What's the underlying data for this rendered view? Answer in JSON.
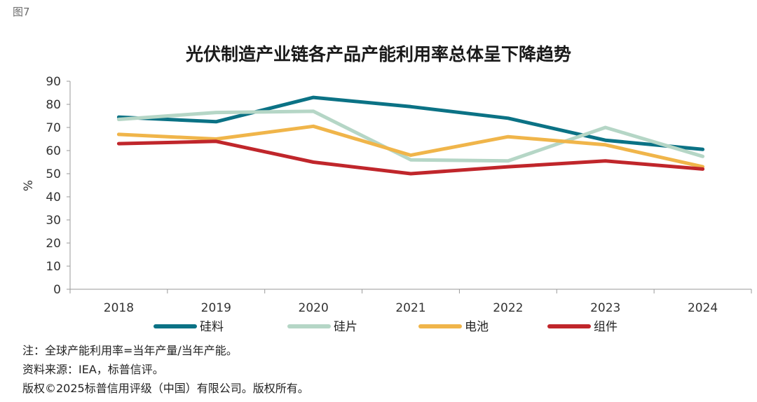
{
  "figure_label": "图7",
  "chart_data": {
    "type": "line",
    "title": "光伏制造产业链各产品产能利用率总体呈下降趋势",
    "ylabel": "%",
    "xlabel": "",
    "ylim": [
      0,
      90
    ],
    "yticks": [
      0,
      10,
      20,
      30,
      40,
      50,
      60,
      70,
      80,
      90
    ],
    "categories": [
      "2018",
      "2019",
      "2020",
      "2021",
      "2022",
      "2023",
      "2024"
    ],
    "grid": false,
    "legend_position": "bottom",
    "series": [
      {
        "name": "硅料",
        "color": "#0b7285",
        "values": [
          74.5,
          72.5,
          83,
          79,
          74,
          64.5,
          60.5
        ]
      },
      {
        "name": "硅片",
        "color": "#b5d6c6",
        "values": [
          73.5,
          76.5,
          77,
          56,
          55.5,
          70,
          57.5
        ]
      },
      {
        "name": "电池",
        "color": "#f0b54a",
        "values": [
          67,
          65,
          70.5,
          58,
          66,
          62.5,
          53
        ]
      },
      {
        "name": "组件",
        "color": "#c0262b",
        "values": [
          63,
          64,
          55,
          50,
          53,
          55.5,
          52
        ]
      }
    ]
  },
  "notes": [
    "注：全球产能利用率=当年产量/当年产能。",
    "资料来源：IEA，标普信评。",
    "版权©2025标普信用评级（中国）有限公司。版权所有。"
  ]
}
